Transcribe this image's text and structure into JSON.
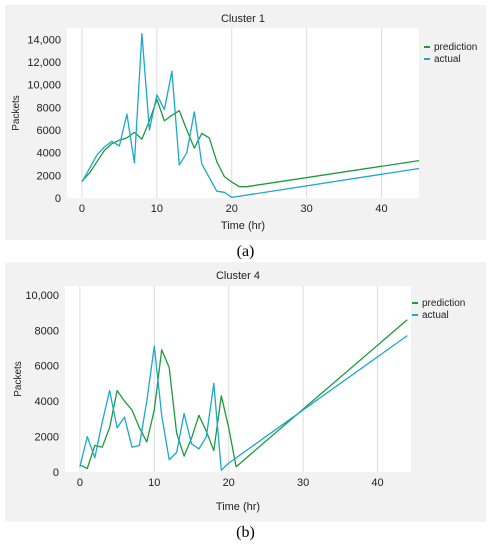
{
  "captions": [
    "(a)",
    "(b)"
  ],
  "chart_data": [
    {
      "type": "line",
      "title": "Cluster 1",
      "xlabel": "Time (hr)",
      "ylabel": "Packets",
      "xlim": [
        -2,
        45
      ],
      "ylim": [
        0,
        15000
      ],
      "xticks": [
        0,
        10,
        20,
        30,
        40
      ],
      "yticks": [
        0,
        2000,
        4000,
        6000,
        8000,
        10000,
        12000,
        14000
      ],
      "ytick_labels": [
        "0",
        "2000",
        "4000",
        "6000",
        "8000",
        "10,000",
        "12,000",
        "14,000"
      ],
      "grid": "vertical",
      "legend": "right",
      "series": [
        {
          "name": "prediction",
          "color": "#1e9a3c",
          "points": [
            [
              0,
              1500
            ],
            [
              1,
              2200
            ],
            [
              2,
              3200
            ],
            [
              3,
              4200
            ],
            [
              4,
              4800
            ],
            [
              5,
              5100
            ],
            [
              6,
              5300
            ],
            [
              7,
              5800
            ],
            [
              8,
              5200
            ],
            [
              9,
              6800
            ],
            [
              10,
              8700
            ],
            [
              11,
              6800
            ],
            [
              12,
              7300
            ],
            [
              13,
              7700
            ],
            [
              14,
              6000
            ],
            [
              15,
              4400
            ],
            [
              16,
              5700
            ],
            [
              17,
              5300
            ],
            [
              18,
              3200
            ],
            [
              19,
              1900
            ],
            [
              20,
              1400
            ],
            [
              21,
              1000
            ],
            [
              22,
              1000
            ],
            [
              45,
              3300
            ]
          ]
        },
        {
          "name": "actual",
          "color": "#1aa8cc",
          "points": [
            [
              0,
              1400
            ],
            [
              1,
              2600
            ],
            [
              2,
              3800
            ],
            [
              3,
              4500
            ],
            [
              4,
              5000
            ],
            [
              5,
              4600
            ],
            [
              6,
              7400
            ],
            [
              7,
              3100
            ],
            [
              8,
              14500
            ],
            [
              9,
              6000
            ],
            [
              10,
              9100
            ],
            [
              11,
              7800
            ],
            [
              12,
              11200
            ],
            [
              13,
              2900
            ],
            [
              14,
              4000
            ],
            [
              15,
              7600
            ],
            [
              16,
              3000
            ],
            [
              17,
              1800
            ],
            [
              18,
              600
            ],
            [
              19,
              500
            ],
            [
              20,
              50
            ],
            [
              45,
              2600
            ]
          ]
        }
      ]
    },
    {
      "type": "line",
      "title": "Cluster 4",
      "xlabel": "Time (hr)",
      "ylabel": "Packets",
      "xlim": [
        -2,
        44.5
      ],
      "ylim": [
        0,
        10500
      ],
      "xticks": [
        0,
        10,
        20,
        30,
        40
      ],
      "yticks": [
        0,
        2000,
        4000,
        6000,
        8000,
        10000
      ],
      "ytick_labels": [
        "0",
        "2000",
        "4000",
        "6000",
        "8000",
        "10,000"
      ],
      "grid": "vertical",
      "legend": "right",
      "series": [
        {
          "name": "prediction",
          "color": "#1e9a3c",
          "points": [
            [
              0,
              400
            ],
            [
              1,
              200
            ],
            [
              2,
              1500
            ],
            [
              3,
              1400
            ],
            [
              4,
              2500
            ],
            [
              5,
              4600
            ],
            [
              6,
              4000
            ],
            [
              7,
              3500
            ],
            [
              8,
              2500
            ],
            [
              9,
              1700
            ],
            [
              10,
              3500
            ],
            [
              11,
              6900
            ],
            [
              12,
              5900
            ],
            [
              13,
              2200
            ],
            [
              14,
              900
            ],
            [
              15,
              1900
            ],
            [
              16,
              3200
            ],
            [
              17,
              2300
            ],
            [
              18,
              1200
            ],
            [
              19,
              4300
            ],
            [
              20,
              2500
            ],
            [
              21,
              300
            ],
            [
              44,
              8600
            ]
          ]
        },
        {
          "name": "actual",
          "color": "#1aa8cc",
          "points": [
            [
              0,
              300
            ],
            [
              1,
              2000
            ],
            [
              2,
              800
            ],
            [
              3,
              2800
            ],
            [
              4,
              4600
            ],
            [
              5,
              2500
            ],
            [
              6,
              3100
            ],
            [
              7,
              1400
            ],
            [
              8,
              1500
            ],
            [
              9,
              4000
            ],
            [
              10,
              7100
            ],
            [
              11,
              3200
            ],
            [
              12,
              700
            ],
            [
              13,
              1100
            ],
            [
              14,
              3300
            ],
            [
              15,
              1600
            ],
            [
              16,
              1300
            ],
            [
              17,
              2000
            ],
            [
              18,
              5000
            ],
            [
              19,
              100
            ],
            [
              20,
              500
            ],
            [
              44,
              7700
            ]
          ]
        }
      ]
    }
  ]
}
